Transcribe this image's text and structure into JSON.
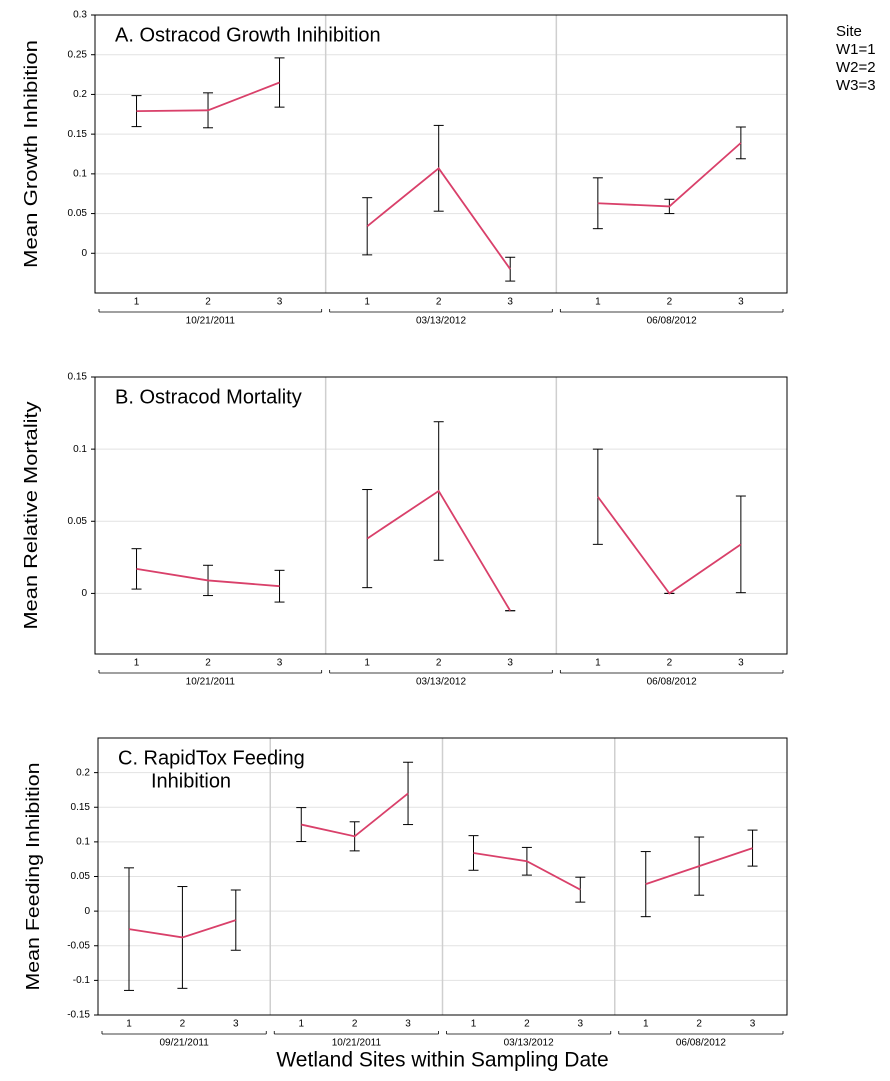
{
  "chart_data": [
    {
      "type": "line",
      "title_lines": [
        "A.  Ostracod Growth Inihibition"
      ],
      "ylabel": "Mean Growth Inhibition",
      "color": "#d9406a",
      "ylim": [
        -0.05,
        0.3
      ],
      "yticks": [
        0,
        0.05,
        0.1,
        0.15,
        0.2,
        0.25,
        0.3
      ],
      "grid": true,
      "legend": {
        "title": "Site",
        "entries": [
          "W1=1",
          "W2=2",
          "W3=3"
        ]
      },
      "groups": [
        {
          "label": "10/21/2011",
          "categories": [
            "1",
            "2",
            "3"
          ],
          "values": [
            0.179,
            0.18,
            0.215
          ],
          "errors": [
            0.0195,
            0.022,
            0.031
          ]
        },
        {
          "label": "03/13/2012",
          "categories": [
            "1",
            "2",
            "3"
          ],
          "values": [
            0.034,
            0.107,
            -0.02
          ],
          "errors": [
            0.036,
            0.054,
            0.015
          ]
        },
        {
          "label": "06/08/2012",
          "categories": [
            "1",
            "2",
            "3"
          ],
          "values": [
            0.063,
            0.059,
            0.139
          ],
          "errors": [
            0.032,
            0.009,
            0.02
          ]
        }
      ]
    },
    {
      "type": "line",
      "title_lines": [
        "B. Ostracod Mortality"
      ],
      "ylabel": "Mean Relative Mortality",
      "color": "#d9406a",
      "ylim": [
        -0.042,
        0.15
      ],
      "yticks": [
        0,
        0.05,
        0.1,
        0.15
      ],
      "grid": true,
      "groups": [
        {
          "label": "10/21/2011",
          "categories": [
            "1",
            "2",
            "3"
          ],
          "values": [
            0.017,
            0.009,
            0.005
          ],
          "errors": [
            0.014,
            0.0105,
            0.011
          ]
        },
        {
          "label": "03/13/2012",
          "categories": [
            "1",
            "2",
            "3"
          ],
          "values": [
            0.038,
            0.071,
            -0.012
          ],
          "errors": [
            0.034,
            0.048,
            0
          ]
        },
        {
          "label": "06/08/2012",
          "categories": [
            "1",
            "2",
            "3"
          ],
          "values": [
            0.067,
            0,
            0.034
          ],
          "errors": [
            0.033,
            0,
            0.0335
          ]
        }
      ]
    },
    {
      "type": "line",
      "title_lines": [
        "C. RapidTox Feeding",
        "Inhibition"
      ],
      "ylabel": "Mean Feeding Inhibition",
      "xlabel": "Wetland Sites within Sampling Date",
      "color": "#d9406a",
      "ylim": [
        -0.15,
        0.25
      ],
      "yticks": [
        -0.15,
        -0.1,
        -0.05,
        0,
        0.05,
        0.1,
        0.15,
        0.2
      ],
      "grid": true,
      "groups": [
        {
          "label": "09/21/2011",
          "categories": [
            "1",
            "2",
            "3"
          ],
          "values": [
            -0.026,
            -0.038,
            -0.013
          ],
          "errors": [
            0.0885,
            0.0735,
            0.0435
          ]
        },
        {
          "label": "10/21/2011",
          "categories": [
            "1",
            "2",
            "3"
          ],
          "values": [
            0.125,
            0.108,
            0.17
          ],
          "errors": [
            0.0245,
            0.021,
            0.045
          ]
        },
        {
          "label": "03/13/2012",
          "categories": [
            "1",
            "2",
            "3"
          ],
          "values": [
            0.084,
            0.072,
            0.031
          ],
          "errors": [
            0.025,
            0.02,
            0.018
          ]
        },
        {
          "label": "06/08/2012",
          "categories": [
            "1",
            "2",
            "3"
          ],
          "values": [
            0.039,
            0.065,
            0.091
          ],
          "errors": [
            0.047,
            0.042,
            0.026
          ]
        }
      ]
    }
  ]
}
